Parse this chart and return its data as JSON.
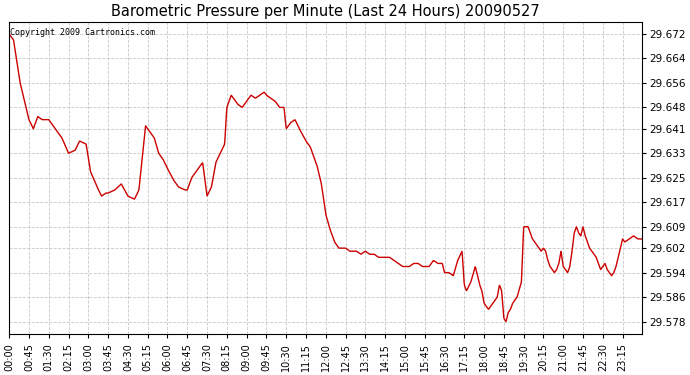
{
  "title": "Barometric Pressure per Minute (Last 24 Hours) 20090527",
  "copyright": "Copyright 2009 Cartronics.com",
  "line_color": "#cc0000",
  "bg_color": "#ffffff",
  "plot_bg_color": "#ffffff",
  "grid_color": "#bbbbbb",
  "yticks": [
    29.578,
    29.586,
    29.594,
    29.602,
    29.609,
    29.617,
    29.625,
    29.633,
    29.641,
    29.648,
    29.656,
    29.664,
    29.672
  ],
  "ylim": [
    29.574,
    29.676
  ],
  "xtick_labels": [
    "00:00",
    "00:45",
    "01:30",
    "02:15",
    "03:00",
    "03:45",
    "04:30",
    "05:15",
    "06:00",
    "06:45",
    "07:30",
    "08:15",
    "09:00",
    "09:45",
    "10:30",
    "11:15",
    "12:00",
    "12:45",
    "13:30",
    "14:15",
    "15:00",
    "15:45",
    "16:30",
    "17:15",
    "18:00",
    "18:45",
    "19:30",
    "20:15",
    "21:00",
    "21:45",
    "22:30",
    "23:15"
  ],
  "key_points": {
    "times_min": [
      0,
      45,
      90,
      135,
      180,
      225,
      270,
      315,
      360,
      405,
      450,
      495,
      540,
      585,
      630,
      675,
      720,
      765,
      810,
      855,
      900,
      945,
      990,
      1035,
      1080,
      1125,
      1170,
      1215,
      1260,
      1305,
      1350,
      1395,
      1440
    ],
    "values": [
      29.672,
      29.644,
      29.644,
      29.633,
      29.621,
      29.62,
      29.619,
      29.641,
      29.628,
      29.621,
      29.619,
      29.648,
      29.65,
      29.652,
      29.641,
      29.637,
      29.613,
      29.602,
      29.601,
      29.599,
      29.596,
      29.596,
      29.594,
      29.59,
      29.584,
      29.579,
      29.609,
      29.602,
      29.596,
      29.609,
      29.596,
      29.605,
      29.605
    ]
  }
}
